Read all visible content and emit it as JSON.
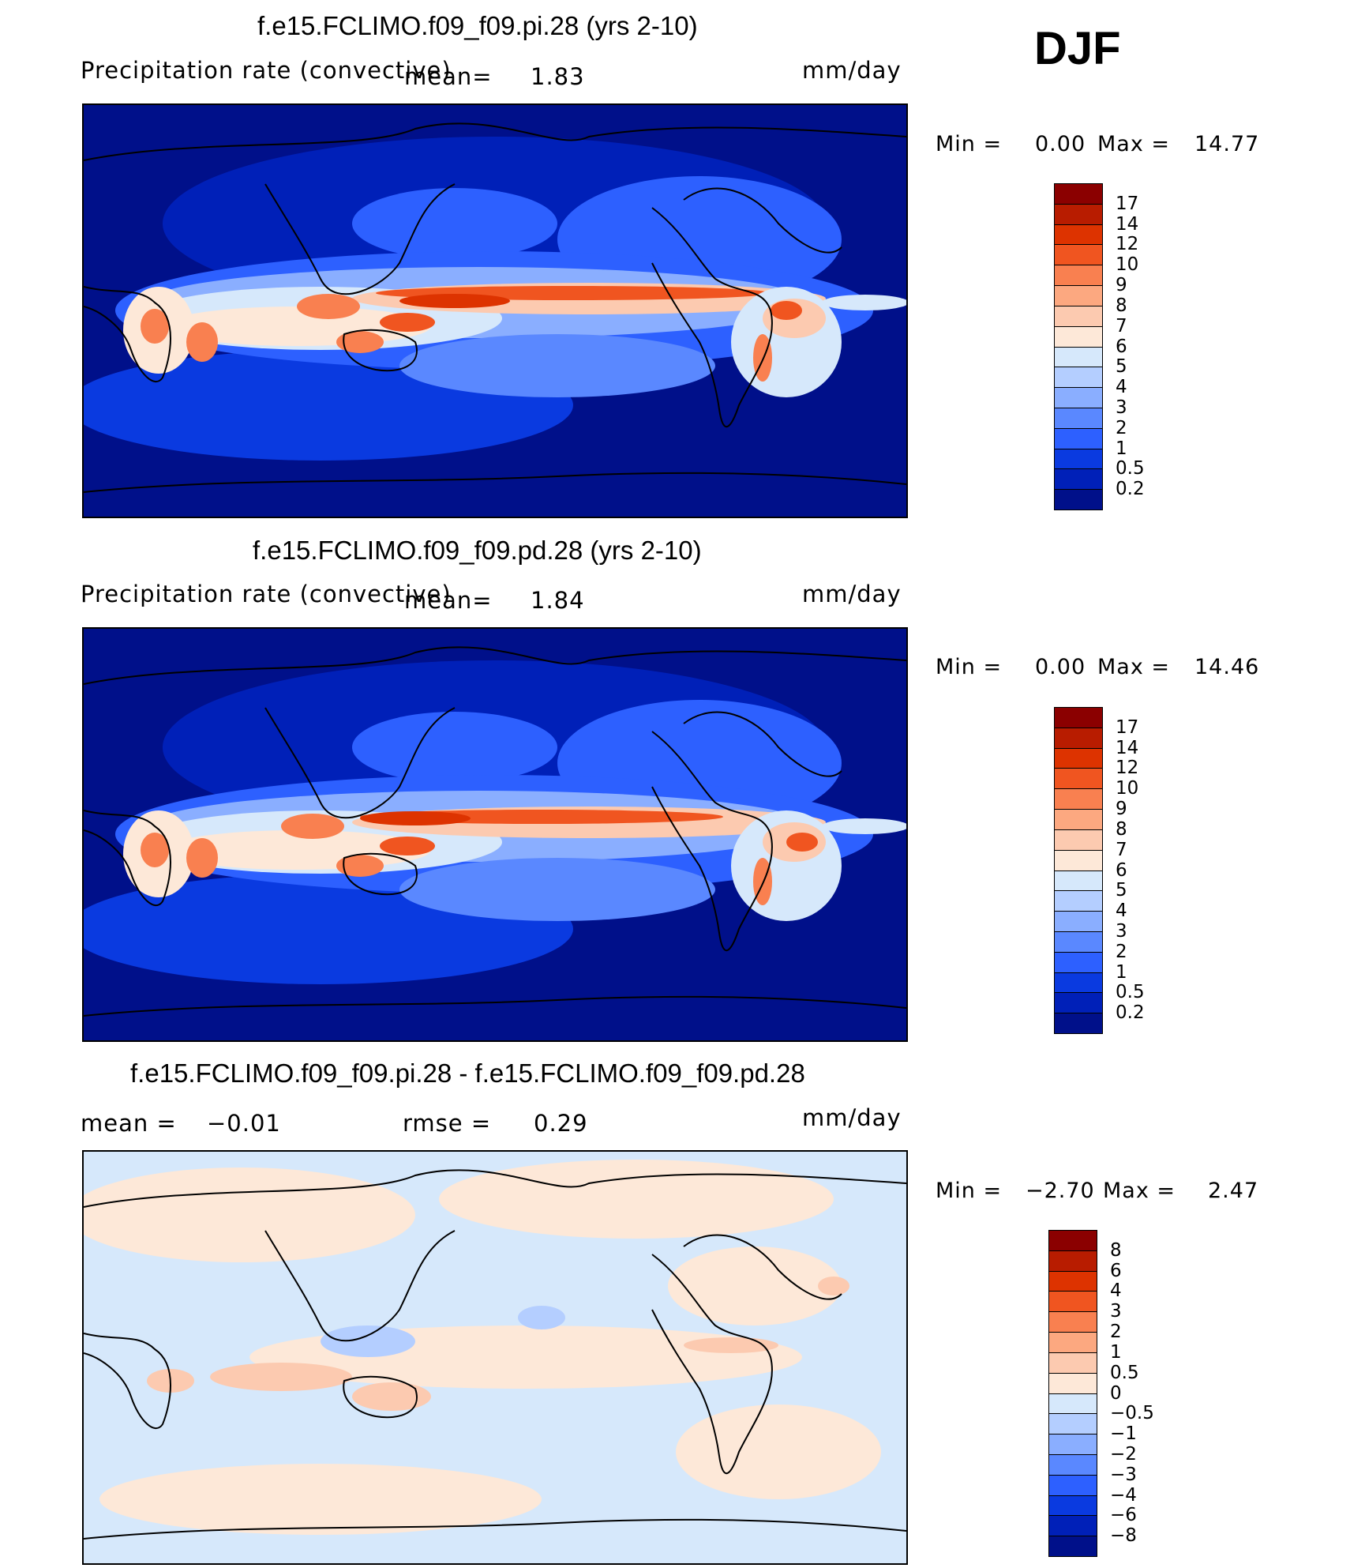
{
  "season": "DJF",
  "panels": [
    {
      "title": "f.e15.FCLIMO.f09_f09.pi.28 (yrs 2-10)",
      "variable": "Precipitation rate (convective)",
      "mean_label": "mean=",
      "mean_value": "1.83",
      "units": "mm/day",
      "min_label": "Min =",
      "min_value": "0.00",
      "max_label": "Max =",
      "max_value": "14.77",
      "colorbar_labels": [
        "17",
        "14",
        "12",
        "10",
        "9",
        "8",
        "7",
        "6",
        "5",
        "4",
        "3",
        "2",
        "1",
        "0.5",
        "0.2"
      ],
      "colorbar_colors": [
        "#8b0000",
        "#b81c00",
        "#dd3300",
        "#f05520",
        "#f98050",
        "#fca880",
        "#fccab0",
        "#fde8d8",
        "#d6e8fb",
        "#b4ceff",
        "#8aaeff",
        "#5a88ff",
        "#2d60ff",
        "#0a3ae0",
        "#0020b8",
        "#00108a"
      ]
    },
    {
      "title": "f.e15.FCLIMO.f09_f09.pd.28 (yrs 2-10)",
      "variable": "Precipitation rate (convective)",
      "mean_label": "mean=",
      "mean_value": "1.84",
      "units": "mm/day",
      "min_label": "Min =",
      "min_value": "0.00",
      "max_label": "Max =",
      "max_value": "14.46",
      "colorbar_labels": [
        "17",
        "14",
        "12",
        "10",
        "9",
        "8",
        "7",
        "6",
        "5",
        "4",
        "3",
        "2",
        "1",
        "0.5",
        "0.2"
      ],
      "colorbar_colors": [
        "#8b0000",
        "#b81c00",
        "#dd3300",
        "#f05520",
        "#f98050",
        "#fca880",
        "#fccab0",
        "#fde8d8",
        "#d6e8fb",
        "#b4ceff",
        "#8aaeff",
        "#5a88ff",
        "#2d60ff",
        "#0a3ae0",
        "#0020b8",
        "#00108a"
      ]
    },
    {
      "title": "f.e15.FCLIMO.f09_f09.pi.28 - f.e15.FCLIMO.f09_f09.pd.28",
      "mean_label": "mean =",
      "mean_value": "−0.01",
      "rmse_label": "rmse =",
      "rmse_value": "0.29",
      "units": "mm/day",
      "min_label": "Min =",
      "min_value": "−2.70",
      "max_label": "Max =",
      "max_value": "2.47",
      "colorbar_labels": [
        "8",
        "6",
        "4",
        "3",
        "2",
        "1",
        "0.5",
        "0",
        "−0.5",
        "−1",
        "−2",
        "−3",
        "−4",
        "−6",
        "−8"
      ],
      "colorbar_colors": [
        "#8b0000",
        "#b81c00",
        "#dd3300",
        "#f05520",
        "#f98050",
        "#fca880",
        "#fccab0",
        "#fde8d8",
        "#d6e8fb",
        "#b4ceff",
        "#8aaeff",
        "#5a88ff",
        "#2d60ff",
        "#0a3ae0",
        "#0020b8",
        "#00108a"
      ]
    }
  ]
}
